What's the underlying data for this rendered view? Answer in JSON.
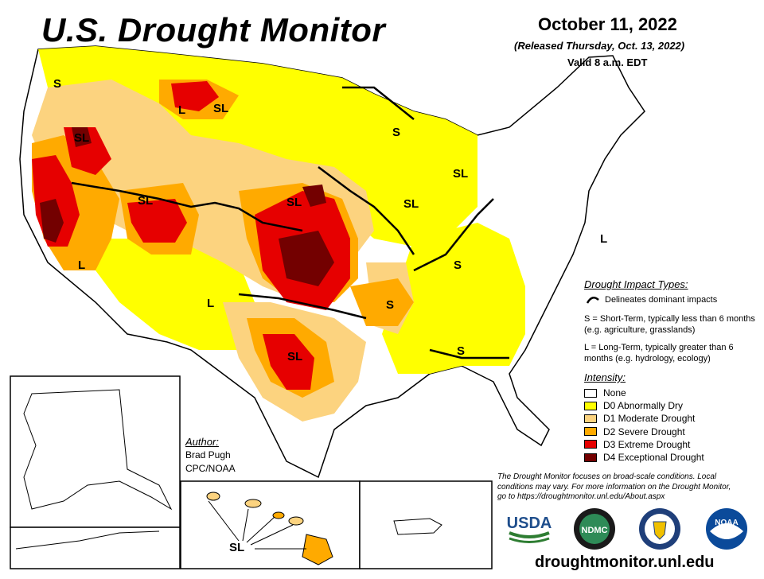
{
  "title": "U.S. Drought Monitor",
  "date": "October 11, 2022",
  "released": "(Released Thursday, Oct. 13, 2022)",
  "valid": "Valid 8 a.m. EDT",
  "impact_types": {
    "title": "Drought Impact Types:",
    "line_desc": "Delineates dominant impacts",
    "short_term": "S = Short-Term, typically less than 6 months (e.g. agriculture, grasslands)",
    "long_term": "L = Long-Term, typically greater than 6 months (e.g. hydrology, ecology)"
  },
  "intensity": {
    "title": "Intensity:",
    "levels": [
      {
        "label": "None",
        "color": "#ffffff"
      },
      {
        "label": "D0 Abnormally Dry",
        "color": "#ffff00"
      },
      {
        "label": "D1 Moderate Drought",
        "color": "#fcd37f"
      },
      {
        "label": "D2 Severe Drought",
        "color": "#ffaa00"
      },
      {
        "label": "D3 Extreme Drought",
        "color": "#e60000"
      },
      {
        "label": "D4 Exceptional Drought",
        "color": "#730000"
      }
    ]
  },
  "author": {
    "heading": "Author:",
    "name": "Brad Pugh",
    "org": "CPC/NOAA"
  },
  "disclaimer": "The Drought Monitor focuses on broad-scale conditions. Local conditions may vary. For more information on the Drought Monitor, go to https://droughtmonitor.unl.edu/About.aspx",
  "map_labels": {
    "s_northwest": "S",
    "sl_oregon": "SL",
    "l_montana": "L",
    "sl_montana": "SL",
    "sl_utah": "SL",
    "l_california": "L",
    "l_newmexico": "L",
    "sl_nebraska": "SL",
    "sl_iowa": "SL",
    "s_wisconsin": "S",
    "sl_michigan": "SL",
    "s_ohio": "S",
    "s_arkansas": "S",
    "s_georgia": "S",
    "sl_texas": "SL",
    "l_maryland": "L",
    "sl_hawaii": "SL"
  },
  "logos": {
    "usda": "USDA",
    "ndmc": "NDMC",
    "noaa": "NOAA"
  },
  "url": "droughtmonitor.unl.edu"
}
